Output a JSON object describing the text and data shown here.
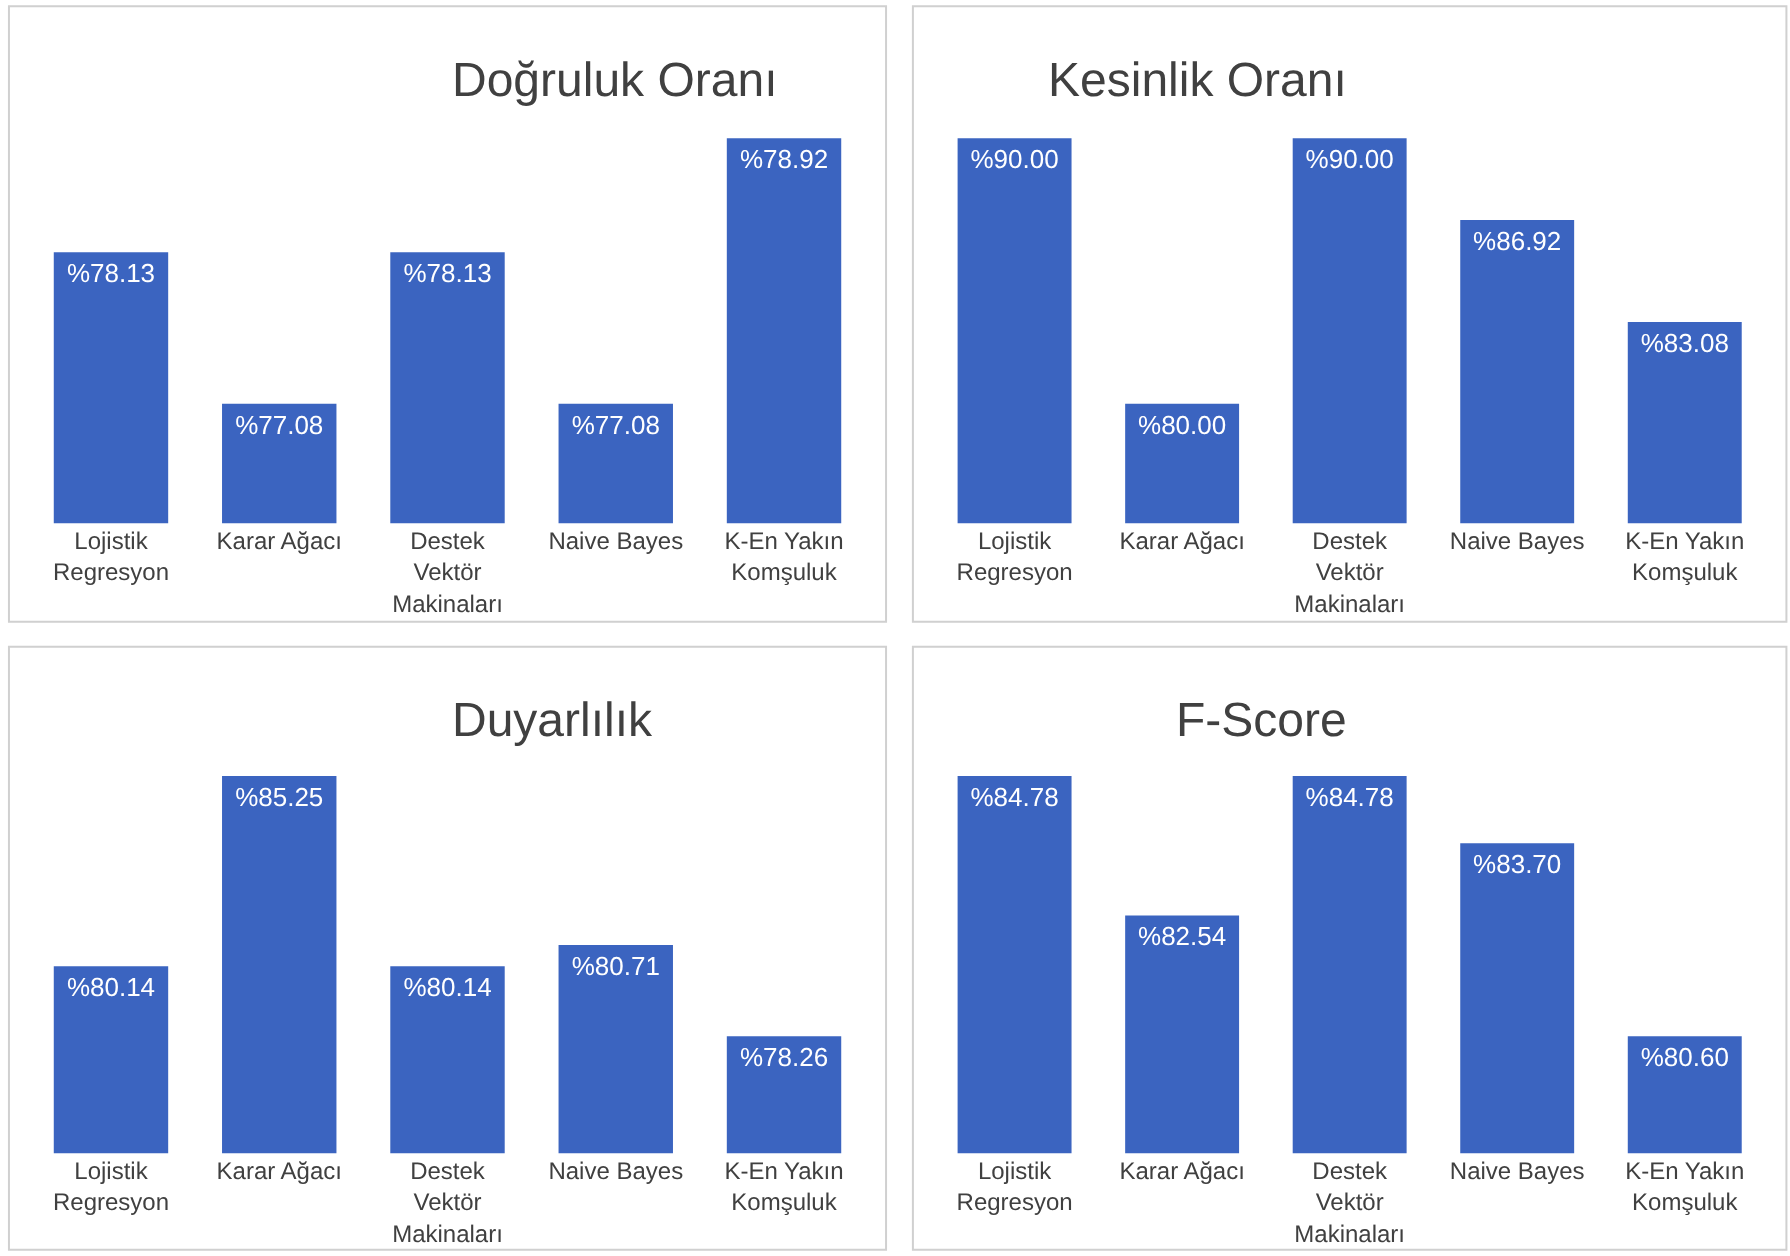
{
  "chart_data": [
    {
      "type": "bar",
      "title": "Doğruluk Oranı",
      "categories": [
        "Lojistik Regresyon",
        "Karar Ağacı",
        "Destek Vektör Makinaları",
        "Naive Bayes",
        "K-En Yakın Komşuluk"
      ],
      "values": [
        78.13,
        77.08,
        78.13,
        77.08,
        78.92
      ],
      "value_labels": [
        "%78.13",
        "%77.08",
        "%78.13",
        "%77.08",
        "%78.92"
      ],
      "color": "#3b64c0"
    },
    {
      "type": "bar",
      "title": "Kesinlik Oranı",
      "categories": [
        "Lojistik Regresyon",
        "Karar Ağacı",
        "Destek Vektör Makinaları",
        "Naive Bayes",
        "K-En Yakın Komşuluk"
      ],
      "values": [
        90.0,
        80.0,
        90.0,
        86.92,
        83.08
      ],
      "value_labels": [
        "%90.00",
        "%80.00",
        "%90.00",
        "%86.92",
        "%83.08"
      ],
      "color": "#3b64c0"
    },
    {
      "type": "bar",
      "title": "Duyarlılık",
      "categories": [
        "Lojistik Regresyon",
        "Karar Ağacı",
        "Destek Vektör Makinaları",
        "Naive Bayes",
        "K-En Yakın Komşuluk"
      ],
      "values": [
        80.14,
        85.25,
        80.14,
        80.71,
        78.26
      ],
      "value_labels": [
        "%80.14",
        "%85.25",
        "%80.14",
        "%80.71",
        "%78.26"
      ],
      "color": "#3b64c0"
    },
    {
      "type": "bar",
      "title": "F-Score",
      "categories": [
        "Lojistik Regresyon",
        "Karar Ağacı",
        "Destek Vektör Makinaları",
        "Naive Bayes",
        "K-En Yakın Komşuluk"
      ],
      "values": [
        84.78,
        82.54,
        84.78,
        83.7,
        80.6
      ],
      "value_labels": [
        "%84.78",
        "%82.54",
        "%84.78",
        "%83.70",
        "%80.60"
      ],
      "color": "#3b64c0"
    }
  ]
}
